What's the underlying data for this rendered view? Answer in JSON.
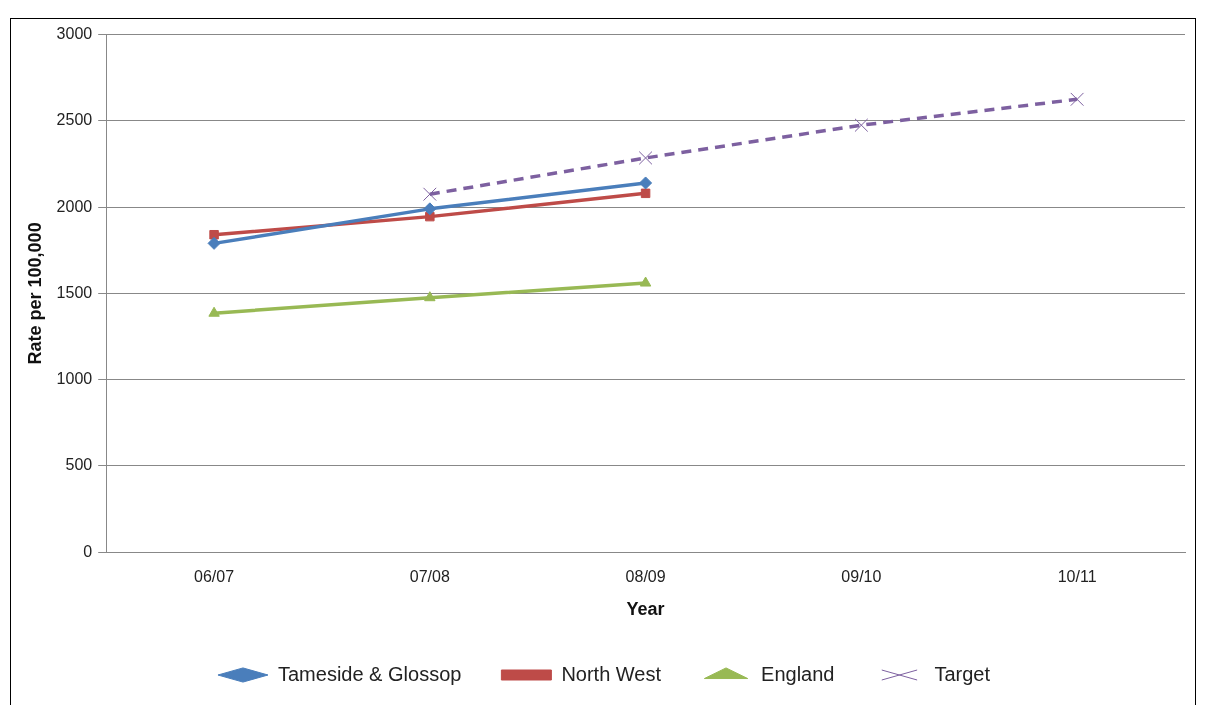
{
  "chart_data": {
    "type": "line",
    "xlabel": "Year",
    "ylabel": "Rate per 100,000",
    "categories": [
      "06/07",
      "07/08",
      "08/09",
      "09/10",
      "10/11"
    ],
    "series": [
      {
        "name": "Tameside & Glossop",
        "color": "#4a7ebb",
        "marker": "diamond",
        "values": [
          1790,
          1990,
          2140,
          null,
          null
        ]
      },
      {
        "name": "North West",
        "color": "#be4b48",
        "marker": "square",
        "values": [
          1840,
          1945,
          2080,
          null,
          null
        ]
      },
      {
        "name": "England",
        "color": "#98b954",
        "marker": "triangle",
        "values": [
          1385,
          1475,
          1560,
          null,
          null
        ]
      },
      {
        "name": "Target",
        "color": "#7d60a0",
        "marker": "cross",
        "line_style": "dashed",
        "values": [
          null,
          2075,
          2285,
          2475,
          2625
        ]
      }
    ],
    "ylim": [
      0,
      3000
    ],
    "yticks": [
      0,
      500,
      1000,
      1500,
      2000,
      2500,
      3000
    ],
    "grid": "y",
    "legend": "bottom"
  }
}
